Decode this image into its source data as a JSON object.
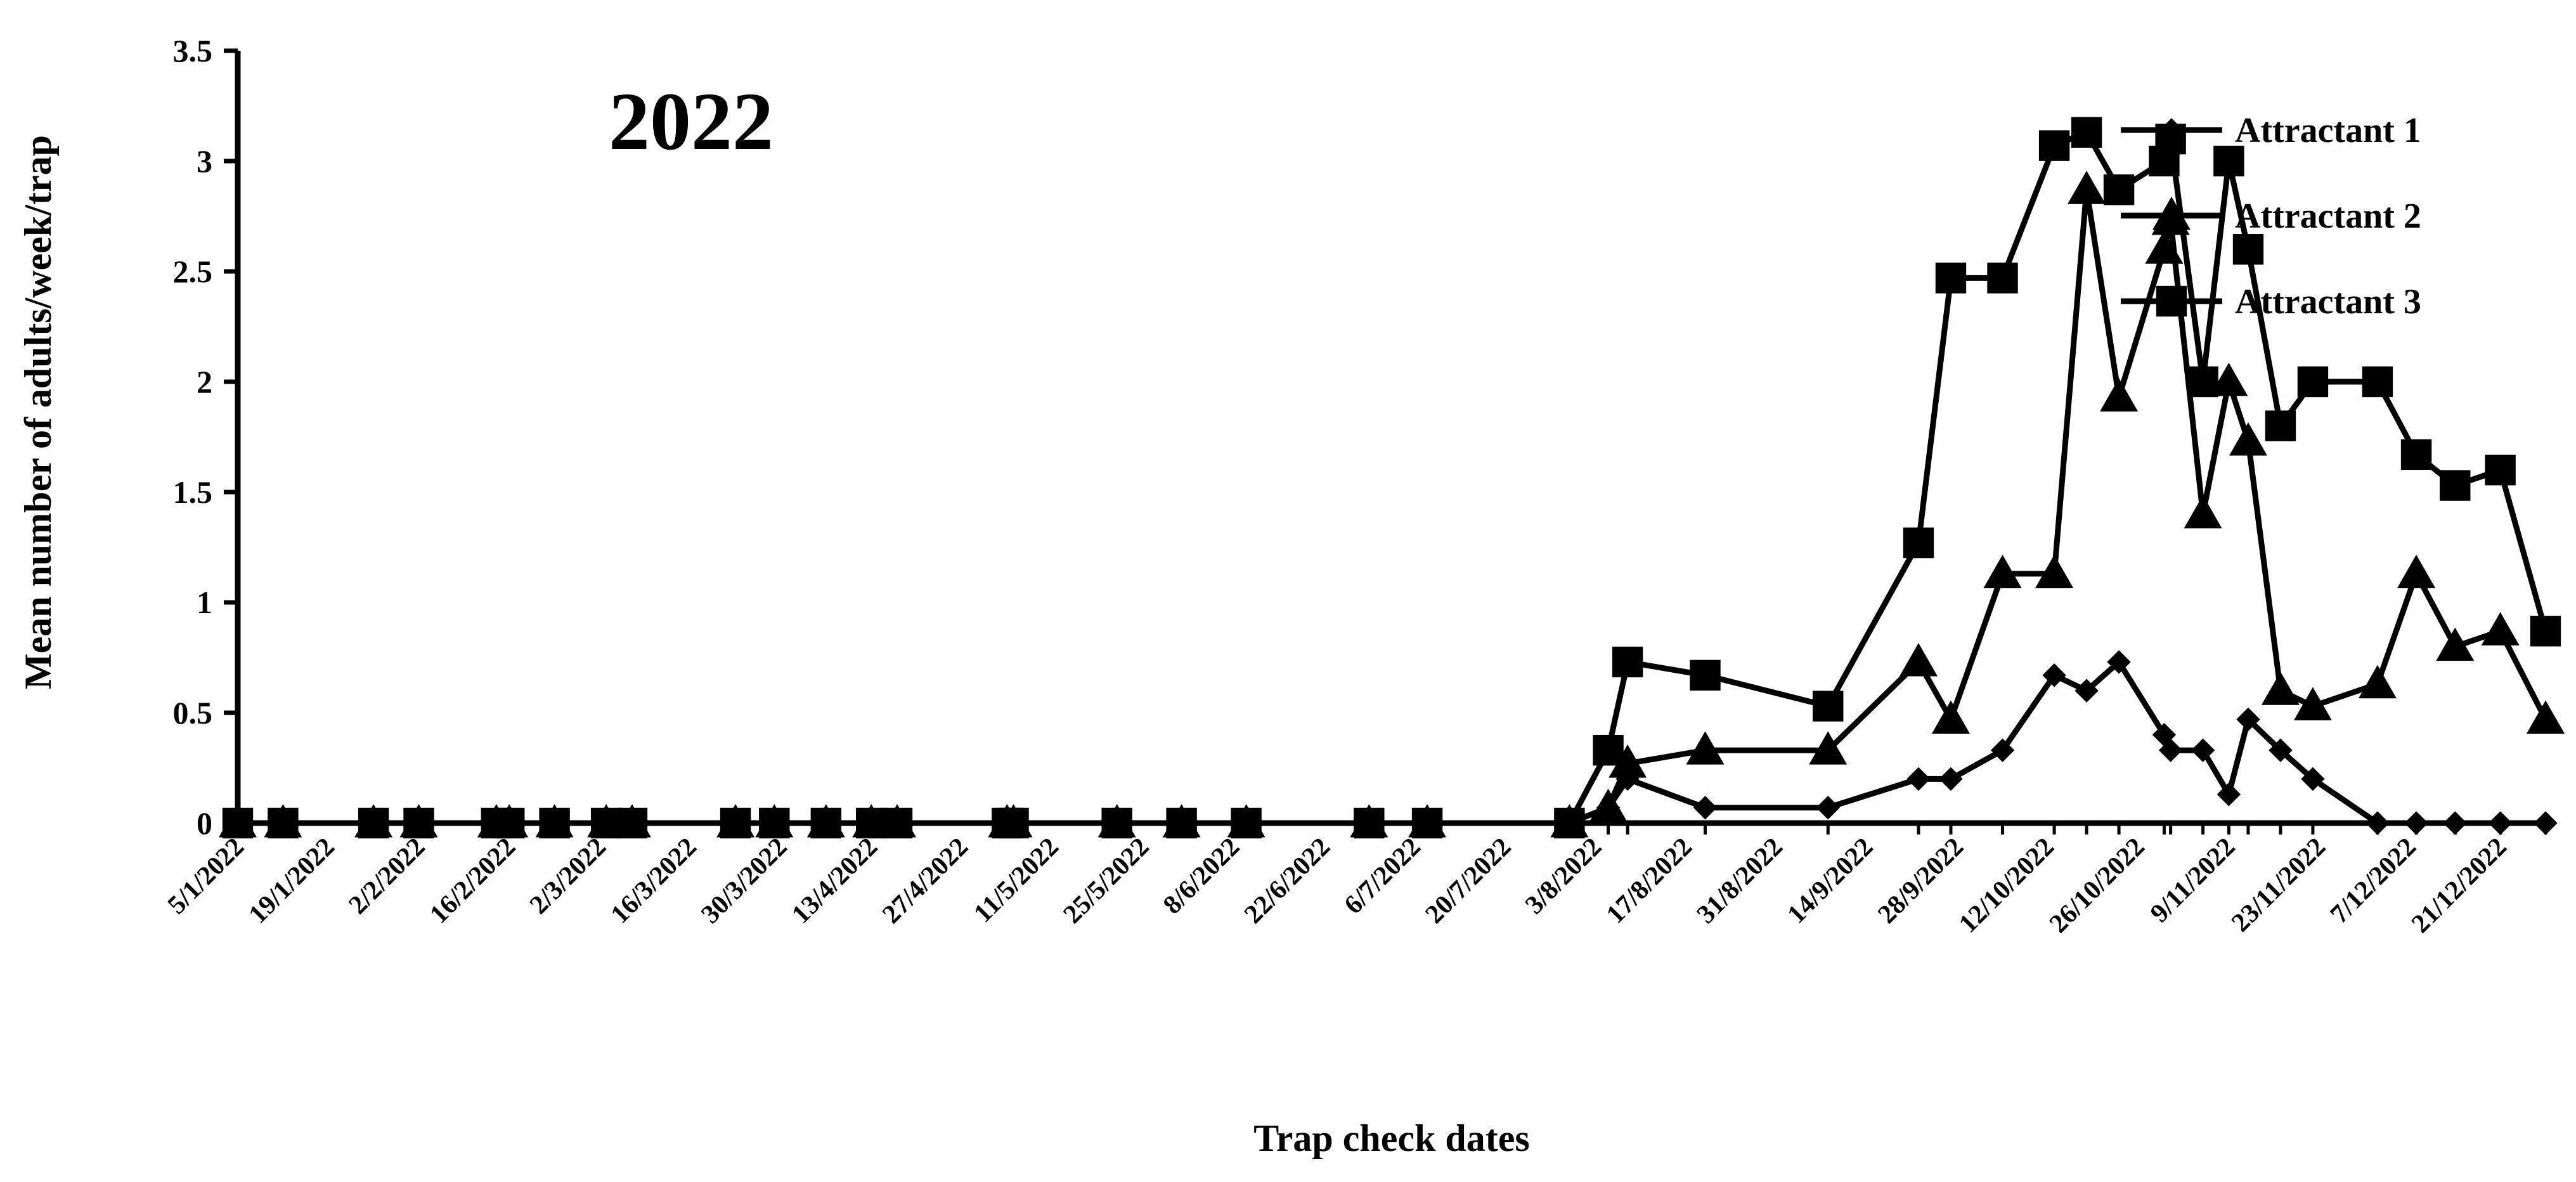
{
  "chart_data": {
    "type": "line",
    "annotation": "2022",
    "xlabel": "Trap check dates",
    "ylabel": "Mean number of adults/week/trap",
    "ylim": [
      0,
      3.5
    ],
    "yticks": [
      "0",
      "0.5",
      "1",
      "1.5",
      "2",
      "2.5",
      "3",
      "3.5"
    ],
    "legend_position": "top-right",
    "x_tick_labels": [
      "5/1/2022",
      "19/1/2022",
      "2/2/2022",
      "16/2/2022",
      "2/3/2022",
      "16/3/2022",
      "30/3/2022",
      "13/4/2022",
      "27/4/2022",
      "11/5/2022",
      "25/5/2022",
      "8/6/2022",
      "22/6/2022",
      "6/7/2022",
      "20/7/2022",
      "3/8/2022",
      "17/8/2022",
      "31/8/2022",
      "14/9/2022",
      "28/9/2022",
      "12/10/2022",
      "26/10/2022",
      "9/11/2022",
      "23/11/2022",
      "7/12/2022",
      "21/12/2022"
    ],
    "x_dates": [
      "5/1/2022",
      "12/1/2022",
      "26/1/2022",
      "2/2/2022",
      "14/2/2022",
      "16/2/2022",
      "23/2/2022",
      "3/3/2022",
      "7/3/2022",
      "23/3/2022",
      "29/3/2022",
      "6/4/2022",
      "13/4/2022",
      "17/4/2022",
      "4/5/2022",
      "5/5/2022",
      "21/5/2022",
      "31/5/2022",
      "10/6/2022",
      "29/6/2022",
      "8/7/2022",
      "30/7/2022",
      "5/8/2022",
      "8/8/2022",
      "20/8/2022",
      "8/9/2022",
      "22/9/2022",
      "27/9/2022",
      "5/10/2022",
      "13/10/2022",
      "18/10/2022",
      "23/10/2022",
      "30/10/2022",
      "31/10/2022",
      "5/11/2022",
      "9/11/2022",
      "12/11/2022",
      "17/11/2022",
      "22/11/2022",
      "2/12/2022",
      "8/12/2022",
      "14/12/2022",
      "21/12/2022",
      "28/12/2022"
    ],
    "series": [
      {
        "name": "Attractant 1",
        "marker": "diamond",
        "x": [
          "5/1/2022",
          "12/1/2022",
          "26/1/2022",
          "2/2/2022",
          "14/2/2022",
          "16/2/2022",
          "23/2/2022",
          "3/3/2022",
          "7/3/2022",
          "23/3/2022",
          "29/3/2022",
          "6/4/2022",
          "13/4/2022",
          "17/4/2022",
          "4/5/2022",
          "5/5/2022",
          "21/5/2022",
          "31/5/2022",
          "10/6/2022",
          "29/6/2022",
          "8/7/2022",
          "30/7/2022",
          "5/8/2022",
          "8/8/2022",
          "20/8/2022",
          "8/9/2022",
          "22/9/2022",
          "27/9/2022",
          "5/10/2022",
          "13/10/2022",
          "18/10/2022",
          "23/10/2022",
          "30/10/2022",
          "31/10/2022",
          "5/11/2022",
          "9/11/2022",
          "12/11/2022",
          "17/11/2022",
          "22/11/2022",
          "2/12/2022",
          "8/12/2022",
          "14/12/2022",
          "21/12/2022",
          "28/12/2022"
        ],
        "values": [
          0,
          0,
          0,
          0,
          0,
          0,
          0,
          0,
          0,
          0,
          0,
          0,
          0,
          0,
          0,
          0,
          0,
          0,
          0,
          0,
          0,
          0,
          0.07,
          0.2,
          0.07,
          0.07,
          0.2,
          0.2,
          0.33,
          0.67,
          0.6,
          0.73,
          0.4,
          0.33,
          0.33,
          0.13,
          0.47,
          0.33,
          0.2,
          0,
          0,
          0,
          0,
          0
        ]
      },
      {
        "name": "Attractant 2",
        "marker": "triangle",
        "x": [
          "5/1/2022",
          "12/1/2022",
          "26/1/2022",
          "2/2/2022",
          "14/2/2022",
          "16/2/2022",
          "23/2/2022",
          "3/3/2022",
          "7/3/2022",
          "23/3/2022",
          "29/3/2022",
          "6/4/2022",
          "13/4/2022",
          "17/4/2022",
          "4/5/2022",
          "5/5/2022",
          "21/5/2022",
          "31/5/2022",
          "10/6/2022",
          "29/6/2022",
          "8/7/2022",
          "30/7/2022",
          "5/8/2022",
          "8/8/2022",
          "20/8/2022",
          "8/9/2022",
          "22/9/2022",
          "27/9/2022",
          "5/10/2022",
          "13/10/2022",
          "18/10/2022",
          "23/10/2022",
          "30/10/2022",
          "31/10/2022",
          "5/11/2022",
          "9/11/2022",
          "12/11/2022",
          "17/11/2022",
          "22/11/2022",
          "2/12/2022",
          "8/12/2022",
          "14/12/2022",
          "21/12/2022",
          "28/12/2022"
        ],
        "values": [
          0,
          0,
          0,
          0,
          0,
          0,
          0,
          0,
          0,
          0,
          0,
          0,
          0,
          0,
          0,
          0,
          0,
          0,
          0,
          0,
          0,
          0,
          0.07,
          0.27,
          0.33,
          0.33,
          0.73,
          0.47,
          1.13,
          1.13,
          2.87,
          1.93,
          2.6,
          2.73,
          1.4,
          2,
          1.73,
          0.6,
          0.53,
          0.63,
          1.13,
          0.8,
          0.87,
          0.47
        ]
      },
      {
        "name": "Attractant 3",
        "marker": "square",
        "x": [
          "5/1/2022",
          "12/1/2022",
          "26/1/2022",
          "2/2/2022",
          "14/2/2022",
          "16/2/2022",
          "23/2/2022",
          "3/3/2022",
          "7/3/2022",
          "23/3/2022",
          "29/3/2022",
          "6/4/2022",
          "13/4/2022",
          "17/4/2022",
          "4/5/2022",
          "5/5/2022",
          "21/5/2022",
          "31/5/2022",
          "10/6/2022",
          "29/6/2022",
          "8/7/2022",
          "30/7/2022",
          "5/8/2022",
          "8/8/2022",
          "20/8/2022",
          "8/9/2022",
          "22/9/2022",
          "27/9/2022",
          "5/10/2022",
          "13/10/2022",
          "18/10/2022",
          "23/10/2022",
          "30/10/2022",
          "31/10/2022",
          "5/11/2022",
          "9/11/2022",
          "12/11/2022",
          "17/11/2022",
          "22/11/2022",
          "2/12/2022",
          "8/12/2022",
          "14/12/2022",
          "21/12/2022",
          "28/12/2022"
        ],
        "values": [
          0,
          0,
          0,
          0,
          0,
          0,
          0,
          0,
          0,
          0,
          0,
          0,
          0,
          0,
          0,
          0,
          0,
          0,
          0,
          0,
          0,
          0,
          0.33,
          0.73,
          0.67,
          0.53,
          1.27,
          2.47,
          2.47,
          3.07,
          3.13,
          2.87,
          3,
          3.1,
          2,
          3,
          2.6,
          1.8,
          2,
          2,
          1.67,
          1.53,
          1.6,
          0.87
        ]
      }
    ]
  }
}
